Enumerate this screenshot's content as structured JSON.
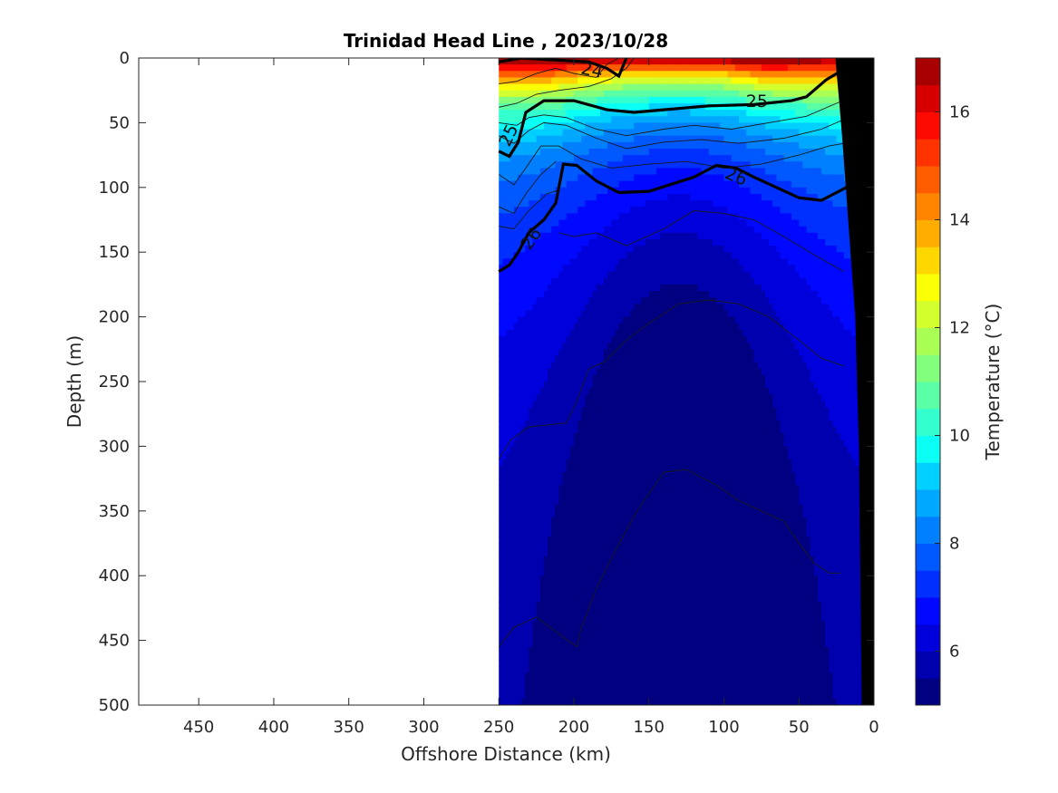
{
  "chart_data": {
    "type": "heatmap",
    "subtype": "filled-contour ocean section",
    "title": "Trinidad Head Line , 2023/10/28",
    "xlabel": "Offshore Distance (km)",
    "ylabel": "Depth (m)",
    "xlim": [
      490,
      0
    ],
    "ylim": [
      500,
      0
    ],
    "x_direction": "reversed",
    "y_direction": "reversed (depth increases downward)",
    "x_ticks": [
      450,
      400,
      350,
      300,
      250,
      200,
      150,
      100,
      50,
      0
    ],
    "y_ticks": [
      0,
      50,
      100,
      150,
      200,
      250,
      300,
      350,
      400,
      450,
      500
    ],
    "data_extent_km": [
      250,
      0
    ],
    "colorbar": {
      "label": "Temperature (°C)",
      "range": [
        5,
        17
      ],
      "level_step": 0.5,
      "ticks": [
        6,
        8,
        10,
        12,
        14,
        16
      ],
      "colormap": "jet",
      "colors": [
        "#000080",
        "#0000ae",
        "#0000dc",
        "#0008ff",
        "#0030ff",
        "#0058ff",
        "#0080ff",
        "#00a8ff",
        "#00d0ff",
        "#0afff5",
        "#32ffcd",
        "#5affa5",
        "#82ff7d",
        "#aaff55",
        "#d2ff2d",
        "#faff05",
        "#ffd700",
        "#ffae00",
        "#ff8500",
        "#ff5c00",
        "#ff3300",
        "#ff0a00",
        "#d60000",
        "#a80000"
      ]
    },
    "temperature_field_description": {
      "surface_max": 16.5,
      "bottom_min": 5.5,
      "cold_dome_center_km": 130
    },
    "density_contours": {
      "labeled": [
        {
          "label": "24",
          "points": [
            [
              250,
              3
            ],
            [
              235,
              0
            ],
            [
              190,
              3
            ],
            [
              178,
              8
            ],
            [
              170,
              14
            ],
            [
              165,
              0
            ]
          ]
        },
        {
          "label": "25",
          "points": [
            [
              250,
              72
            ],
            [
              243,
              76
            ],
            [
              237,
              65
            ],
            [
              232,
              42
            ],
            [
              220,
              33
            ],
            [
              200,
              33
            ],
            [
              178,
              40
            ],
            [
              160,
              42
            ],
            [
              140,
              40
            ],
            [
              110,
              37
            ],
            [
              80,
              36
            ],
            [
              55,
              33
            ],
            [
              45,
              30
            ],
            [
              32,
              17
            ],
            [
              22,
              10
            ],
            [
              10,
              5
            ]
          ]
        },
        {
          "label": "26",
          "points": [
            [
              250,
              165
            ],
            [
              243,
              160
            ],
            [
              237,
              150
            ],
            [
              230,
              135
            ],
            [
              220,
              125
            ],
            [
              212,
              112
            ],
            [
              207,
              82
            ],
            [
              198,
              83
            ],
            [
              185,
              95
            ],
            [
              170,
              104
            ],
            [
              150,
              103
            ],
            [
              120,
              92
            ],
            [
              105,
              83
            ],
            [
              92,
              85
            ],
            [
              80,
              92
            ],
            [
              65,
              100
            ],
            [
              50,
              108
            ],
            [
              35,
              110
            ],
            [
              25,
              104
            ],
            [
              15,
              98
            ],
            [
              8,
              98
            ]
          ]
        }
      ],
      "thin": [
        [
          [
            250,
            20
          ],
          [
            238,
            18
          ],
          [
            225,
            12
          ],
          [
            212,
            8
          ],
          [
            200,
            12
          ],
          [
            185,
            15
          ],
          [
            178,
            5
          ],
          [
            170,
            0
          ]
        ],
        [
          [
            160,
            0
          ],
          [
            165,
            8
          ],
          [
            175,
            16
          ],
          [
            190,
            22
          ],
          [
            210,
            25
          ],
          [
            225,
            28
          ],
          [
            238,
            35
          ],
          [
            250,
            38
          ]
        ],
        [
          [
            250,
            50
          ],
          [
            238,
            52
          ],
          [
            230,
            46
          ],
          [
            220,
            44
          ],
          [
            205,
            46
          ],
          [
            185,
            55
          ],
          [
            165,
            60
          ],
          [
            140,
            55
          ],
          [
            120,
            52
          ],
          [
            95,
            55
          ],
          [
            70,
            50
          ],
          [
            45,
            45
          ],
          [
            25,
            35
          ],
          [
            10,
            28
          ]
        ],
        [
          [
            250,
            60
          ],
          [
            240,
            66
          ],
          [
            230,
            56
          ],
          [
            220,
            50
          ],
          [
            205,
            52
          ],
          [
            185,
            62
          ],
          [
            165,
            70
          ],
          [
            140,
            65
          ],
          [
            115,
            63
          ],
          [
            90,
            66
          ],
          [
            60,
            62
          ],
          [
            35,
            55
          ],
          [
            15,
            45
          ]
        ],
        [
          [
            250,
            90
          ],
          [
            240,
            98
          ],
          [
            232,
            85
          ],
          [
            222,
            68
          ],
          [
            210,
            68
          ],
          [
            195,
            78
          ],
          [
            175,
            85
          ],
          [
            150,
            82
          ],
          [
            125,
            80
          ],
          [
            100,
            85
          ],
          [
            75,
            82
          ],
          [
            50,
            75
          ],
          [
            30,
            68
          ],
          [
            15,
            65
          ]
        ],
        [
          [
            250,
            115
          ],
          [
            240,
            120
          ],
          [
            232,
            105
          ],
          [
            222,
            90
          ],
          [
            212,
            80
          ]
        ],
        [
          [
            250,
            130
          ],
          [
            240,
            132
          ],
          [
            230,
            118
          ],
          [
            218,
            105
          ],
          [
            210,
            102
          ]
        ],
        [
          [
            250,
            310
          ],
          [
            242,
            295
          ],
          [
            230,
            285
          ],
          [
            205,
            282
          ],
          [
            198,
            265
          ],
          [
            190,
            240
          ],
          [
            180,
            235
          ],
          [
            165,
            218
          ],
          [
            150,
            205
          ],
          [
            130,
            190
          ],
          [
            110,
            187
          ],
          [
            90,
            190
          ],
          [
            70,
            200
          ],
          [
            50,
            218
          ],
          [
            35,
            232
          ],
          [
            20,
            238
          ]
        ],
        [
          [
            250,
            455
          ],
          [
            240,
            440
          ],
          [
            225,
            432
          ],
          [
            210,
            445
          ],
          [
            198,
            455
          ],
          [
            195,
            440
          ],
          [
            185,
            410
          ],
          [
            172,
            380
          ],
          [
            158,
            350
          ],
          [
            140,
            320
          ],
          [
            125,
            318
          ],
          [
            105,
            330
          ],
          [
            90,
            342
          ],
          [
            75,
            350
          ],
          [
            60,
            358
          ],
          [
            50,
            375
          ],
          [
            40,
            390
          ],
          [
            30,
            398
          ],
          [
            22,
            398
          ]
        ],
        [
          [
            210,
            135
          ],
          [
            200,
            138
          ],
          [
            185,
            135
          ],
          [
            165,
            145
          ],
          [
            140,
            132
          ],
          [
            120,
            118
          ],
          [
            100,
            120
          ],
          [
            80,
            125
          ],
          [
            60,
            138
          ],
          [
            40,
            152
          ],
          [
            20,
            165
          ]
        ]
      ]
    },
    "bathymetry": {
      "color": "#000000",
      "shelf_edge_points": [
        [
          0,
          0
        ],
        [
          0,
          500
        ],
        [
          26,
          500
        ],
        [
          32,
          300
        ],
        [
          40,
          200
        ],
        [
          50,
          150
        ],
        [
          60,
          100
        ],
        [
          68,
          60
        ],
        [
          75,
          30
        ],
        [
          80,
          10
        ],
        [
          82,
          0
        ]
      ]
    }
  }
}
